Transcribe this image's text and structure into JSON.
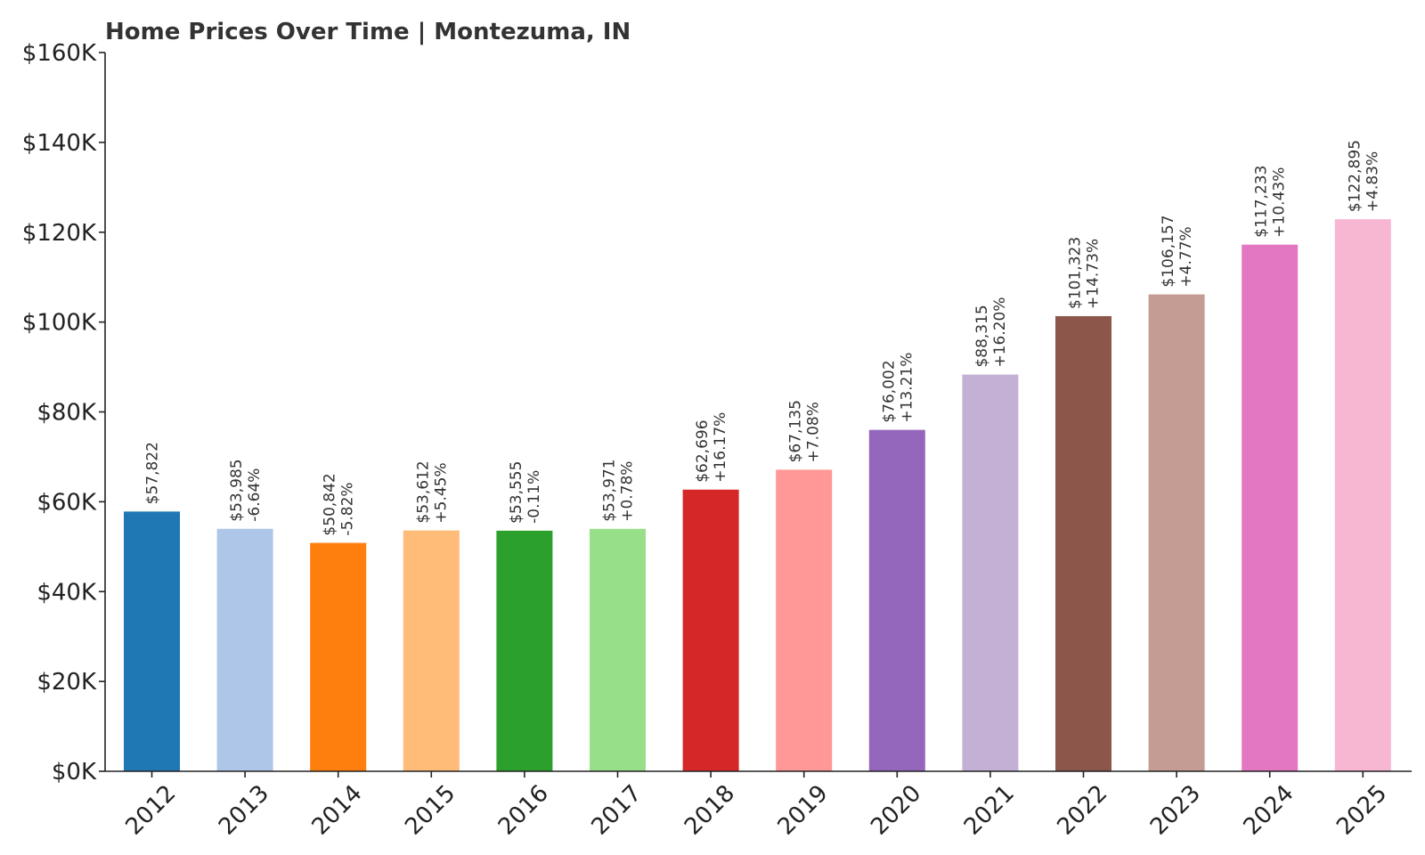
{
  "chart_data": {
    "type": "bar",
    "title": "Home Prices Over Time | Montezuma, IN",
    "xlabel": "",
    "ylabel": "",
    "ylim": [
      0,
      160000
    ],
    "yticks": [
      0,
      20000,
      40000,
      60000,
      80000,
      100000,
      120000,
      140000,
      160000
    ],
    "ytick_labels": [
      "$0K",
      "$20K",
      "$40K",
      "$60K",
      "$80K",
      "$100K",
      "$120K",
      "$140K",
      "$160K"
    ],
    "grid": false,
    "categories": [
      "2012",
      "2013",
      "2014",
      "2015",
      "2016",
      "2017",
      "2018",
      "2019",
      "2020",
      "2021",
      "2022",
      "2023",
      "2024",
      "2025"
    ],
    "values": [
      57822,
      53985,
      50842,
      53612,
      53555,
      53971,
      62696,
      67135,
      76002,
      88315,
      101323,
      106157,
      117233,
      122895
    ],
    "value_labels": [
      "$57,822",
      "$53,985",
      "$50,842",
      "$53,612",
      "$53,555",
      "$53,971",
      "$62,696",
      "$67,135",
      "$76,002",
      "$88,315",
      "$101,323",
      "$106,157",
      "$117,233",
      "$122,895"
    ],
    "change_labels": [
      "",
      "-6.64%",
      "-5.82%",
      "+5.45%",
      "-0.11%",
      "+0.78%",
      "+16.17%",
      "+7.08%",
      "+13.21%",
      "+16.20%",
      "+14.73%",
      "+4.77%",
      "+10.43%",
      "+4.83%"
    ],
    "colors": [
      "#1f77b4",
      "#aec7e8",
      "#ff7f0e",
      "#ffbb78",
      "#2ca02c",
      "#98df8a",
      "#d62728",
      "#ff9896",
      "#9467bd",
      "#c5b0d5",
      "#8c564b",
      "#c49c94",
      "#e377c2",
      "#f7b6d2"
    ]
  }
}
